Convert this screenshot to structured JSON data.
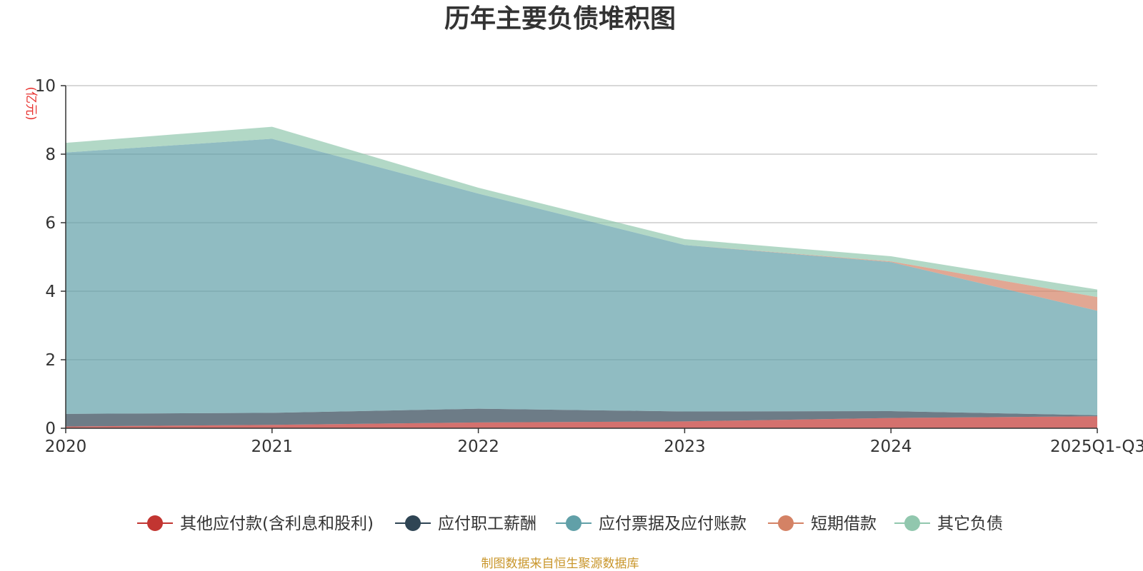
{
  "chart_data": {
    "type": "area",
    "stacked": true,
    "title": "历年主要负债堆积图",
    "unit_label": "(亿元)",
    "categories": [
      "2020",
      "2021",
      "2022",
      "2023",
      "2024",
      "2025Q1-Q3"
    ],
    "ylim": [
      0,
      10
    ],
    "yticks": [
      0,
      2,
      4,
      6,
      8,
      10
    ],
    "grid": true,
    "legend_position": "bottom",
    "series": [
      {
        "name": "其他应付款(含利息和股利)",
        "color": "#c23531",
        "values": [
          0.05,
          0.1,
          0.17,
          0.2,
          0.3,
          0.35
        ]
      },
      {
        "name": "应付职工薪酬",
        "color": "#2f4554",
        "values": [
          0.37,
          0.35,
          0.4,
          0.29,
          0.2,
          0.03
        ]
      },
      {
        "name": "应付票据及应付账款",
        "color": "#61a0a8",
        "values": [
          7.63,
          8.0,
          6.28,
          4.86,
          4.35,
          3.05
        ]
      },
      {
        "name": "短期借款",
        "color": "#d48265",
        "values": [
          0.0,
          0.0,
          0.0,
          0.0,
          0.02,
          0.4
        ]
      },
      {
        "name": "其它负债",
        "color": "#91c7ae",
        "values": [
          0.28,
          0.35,
          0.17,
          0.17,
          0.15,
          0.22
        ]
      }
    ]
  },
  "source_note": "制图数据来自恒生聚源数据库"
}
